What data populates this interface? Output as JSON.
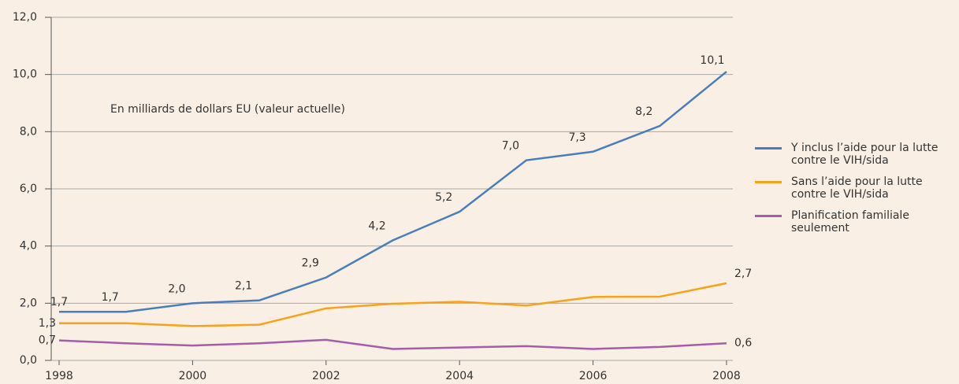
{
  "chart_data": {
    "type": "line",
    "annotation": "En milliards de dollars EU (valeur actuelle)",
    "x": [
      1998,
      1999,
      2000,
      2001,
      2002,
      2003,
      2004,
      2005,
      2006,
      2007,
      2008
    ],
    "xlim": [
      1998,
      2008
    ],
    "xticks": [
      1998,
      2000,
      2002,
      2004,
      2006,
      2008
    ],
    "ylim": [
      0,
      12
    ],
    "yticks": [
      {
        "value": 0,
        "label": "0,0"
      },
      {
        "value": 2,
        "label": "2,0"
      },
      {
        "value": 4,
        "label": "4,0"
      },
      {
        "value": 6,
        "label": "6,0"
      },
      {
        "value": 8,
        "label": "8,0"
      },
      {
        "value": 10,
        "label": "10,0"
      },
      {
        "value": 12,
        "label": "12,0"
      }
    ],
    "grid": true,
    "legend": "right",
    "series": [
      {
        "name": "Y inclus l’aide pour la lutte contre le VIH/sida",
        "color": "#4a7ebb",
        "values": [
          1.7,
          1.7,
          2.0,
          2.1,
          2.9,
          4.2,
          5.2,
          7.0,
          7.3,
          8.2,
          10.1
        ],
        "value_labels": [
          "1,7",
          "1,7",
          "2,0",
          "2,1",
          "2,9",
          "4,2",
          "5,2",
          "7,0",
          "7,3",
          "8,2",
          "10,1"
        ]
      },
      {
        "name": "Sans l’aide pour la lutte contre le VIH/sida",
        "color": "#f7a21b",
        "values": [
          1.3,
          1.3,
          1.2,
          1.25,
          1.82,
          1.98,
          2.05,
          1.92,
          2.22,
          2.23,
          2.7
        ],
        "value_labels": [
          "1,3",
          null,
          null,
          null,
          null,
          null,
          null,
          null,
          null,
          null,
          "2,7"
        ]
      },
      {
        "name": "Planification familiale seulement",
        "color": "#a45ea8",
        "values": [
          0.7,
          0.6,
          0.52,
          0.6,
          0.72,
          0.4,
          0.45,
          0.5,
          0.4,
          0.47,
          0.6
        ],
        "value_labels": [
          "0,7",
          null,
          null,
          null,
          null,
          null,
          null,
          null,
          null,
          null,
          "0,6"
        ]
      }
    ]
  }
}
